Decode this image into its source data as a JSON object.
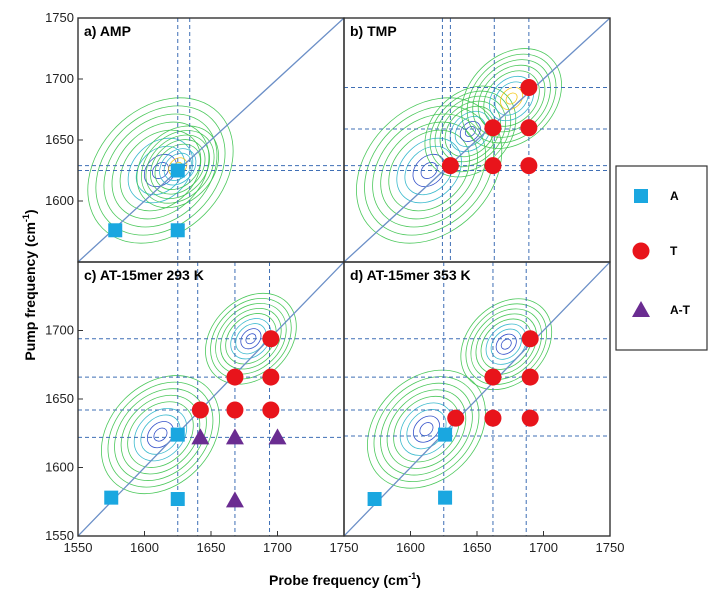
{
  "chart_data": {
    "type": "scatter",
    "x_range": [
      1550,
      1750
    ],
    "y_range": [
      1550,
      1750
    ],
    "x_ticks": [
      "1550",
      "1600",
      "1650",
      "1700",
      "1750"
    ],
    "y_ticks_top": [
      "1600",
      "1650",
      "1700",
      "1750"
    ],
    "y_ticks_bottom": [
      "1550",
      "1600",
      "1650",
      "1700"
    ],
    "x_label_main": "Probe frequency (cm",
    "x_label_sup": "-1",
    "x_label_end": ")",
    "y_label_main": "Pump frequency (cm",
    "y_label_sup": "-1",
    "y_label_end": ")",
    "legend": [
      {
        "name": "A",
        "marker": "square",
        "color": "#1aa7e0"
      },
      {
        "name": "T",
        "marker": "circle",
        "color": "#e8141b"
      },
      {
        "name": "A-T",
        "marker": "triangle",
        "color": "#6a2c91"
      }
    ],
    "panels": [
      {
        "title": "a) AMP",
        "dashed_x": [
          1625,
          1634
        ],
        "dashed_y": [
          1625,
          1629
        ],
        "series": {
          "A": [
            [
              1578,
              1576
            ],
            [
              1625,
              1576
            ],
            [
              1625,
              1625
            ]
          ],
          "T": [],
          "A-T": []
        },
        "contour_hint": [
          {
            "x": 1612,
            "y": 1625,
            "r": 16,
            "color": "#1f3fc4"
          },
          {
            "x": 1625,
            "y": 1628,
            "r": 9,
            "color": "#f2c200"
          }
        ]
      },
      {
        "title": "b) TMP",
        "dashed_x": [
          1624,
          1630,
          1663,
          1689
        ],
        "dashed_y": [
          1625,
          1629,
          1659,
          1693
        ],
        "series": {
          "A": [],
          "T": [
            [
              1630,
              1629
            ],
            [
              1662,
              1629
            ],
            [
              1689,
              1629
            ],
            [
              1662,
              1660
            ],
            [
              1689,
              1660
            ],
            [
              1689,
              1693
            ]
          ],
          "A-T": []
        },
        "contour_hint": [
          {
            "x": 1614,
            "y": 1625,
            "r": 16,
            "color": "#1f3fc4"
          },
          {
            "x": 1645,
            "y": 1657,
            "r": 10,
            "color": "#1f3fc4"
          },
          {
            "x": 1676,
            "y": 1684,
            "r": 11,
            "color": "#f2c200"
          }
        ]
      },
      {
        "title": "c) AT-15mer 293 K",
        "dashed_x": [
          1625,
          1640,
          1668,
          1694
        ],
        "dashed_y": [
          1622,
          1642,
          1666,
          1694
        ],
        "series": {
          "A": [
            [
              1575,
              1578
            ],
            [
              1625,
              1577
            ],
            [
              1625,
              1624
            ]
          ],
          "T": [
            [
              1642,
              1642
            ],
            [
              1668,
              1642
            ],
            [
              1695,
              1642
            ],
            [
              1668,
              1666
            ],
            [
              1695,
              1666
            ],
            [
              1695,
              1694
            ]
          ],
          "A-T": [
            [
              1642,
              1622
            ],
            [
              1668,
              1622
            ],
            [
              1700,
              1622
            ],
            [
              1668,
              1576
            ]
          ]
        },
        "contour_hint": [
          {
            "x": 1612,
            "y": 1624,
            "r": 13,
            "color": "#1f3fc4"
          },
          {
            "x": 1680,
            "y": 1694,
            "r": 10,
            "color": "#1f3fc4"
          }
        ]
      },
      {
        "title": "d) AT-15mer 353 K",
        "dashed_x": [
          1625,
          1662,
          1687
        ],
        "dashed_y": [
          1623,
          1642,
          1666,
          1694
        ],
        "series": {
          "A": [
            [
              1573,
              1577
            ],
            [
              1626,
              1578
            ],
            [
              1626,
              1624
            ]
          ],
          "T": [
            [
              1634,
              1636
            ],
            [
              1662,
              1636
            ],
            [
              1690,
              1636
            ],
            [
              1662,
              1666
            ],
            [
              1690,
              1666
            ],
            [
              1690,
              1694
            ]
          ],
          "A-T": []
        },
        "contour_hint": [
          {
            "x": 1612,
            "y": 1628,
            "r": 13,
            "color": "#1f3fc4"
          },
          {
            "x": 1672,
            "y": 1690,
            "r": 10,
            "color": "#1f3fc4"
          }
        ]
      }
    ]
  }
}
